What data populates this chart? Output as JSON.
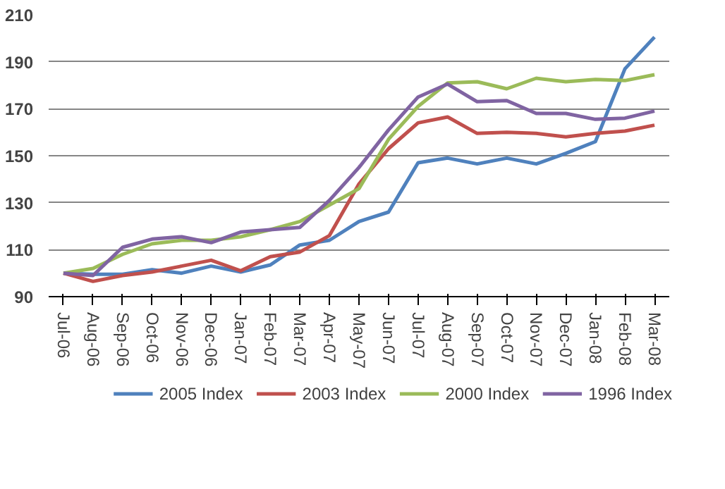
{
  "chart_data": {
    "type": "line",
    "categories": [
      "Jul-06",
      "Aug-06",
      "Sep-06",
      "Oct-06",
      "Nov-06",
      "Dec-06",
      "Jan-07",
      "Feb-07",
      "Mar-07",
      "Apr-07",
      "May-07",
      "Jun-07",
      "Jul-07",
      "Aug-07",
      "Sep-07",
      "Oct-07",
      "Nov-07",
      "Dec-07",
      "Jan-08",
      "Feb-08",
      "Mar-08"
    ],
    "series": [
      {
        "name": "2005 Index",
        "color": "#4f81bd",
        "values": [
          100,
          99.5,
          99.5,
          101.5,
          100,
          103,
          100.5,
          103.5,
          112,
          114,
          122,
          126,
          147,
          149,
          146.5,
          149,
          146.5,
          151,
          156,
          187,
          200.5
        ]
      },
      {
        "name": "2003 Index",
        "color": "#c0504d",
        "values": [
          100,
          96.5,
          99,
          100.5,
          103,
          105.5,
          101,
          107,
          109,
          116,
          138,
          153,
          164,
          166.5,
          159.5,
          160,
          159.5,
          158,
          159.5,
          160.5,
          163
        ]
      },
      {
        "name": "2000 Index",
        "color": "#9bbb59",
        "values": [
          100,
          102,
          108,
          112.5,
          114,
          114,
          115.5,
          118.5,
          122,
          129,
          136,
          157,
          171,
          181,
          181.5,
          178.5,
          183,
          181.5,
          182.5,
          182,
          184.5
        ]
      },
      {
        "name": "1996 Index",
        "color": "#8064a2",
        "values": [
          100,
          99,
          111,
          114.5,
          115.5,
          113,
          117.5,
          118.5,
          119.5,
          131,
          145,
          161,
          175,
          180.5,
          173,
          173.5,
          168,
          168,
          165.5,
          166,
          169
        ]
      }
    ],
    "ylim": [
      90,
      210
    ],
    "yticks": [
      90,
      110,
      130,
      150,
      170,
      190,
      210
    ],
    "grid": "y",
    "legend": "bottom",
    "marker": "none",
    "line_style": "solid"
  }
}
